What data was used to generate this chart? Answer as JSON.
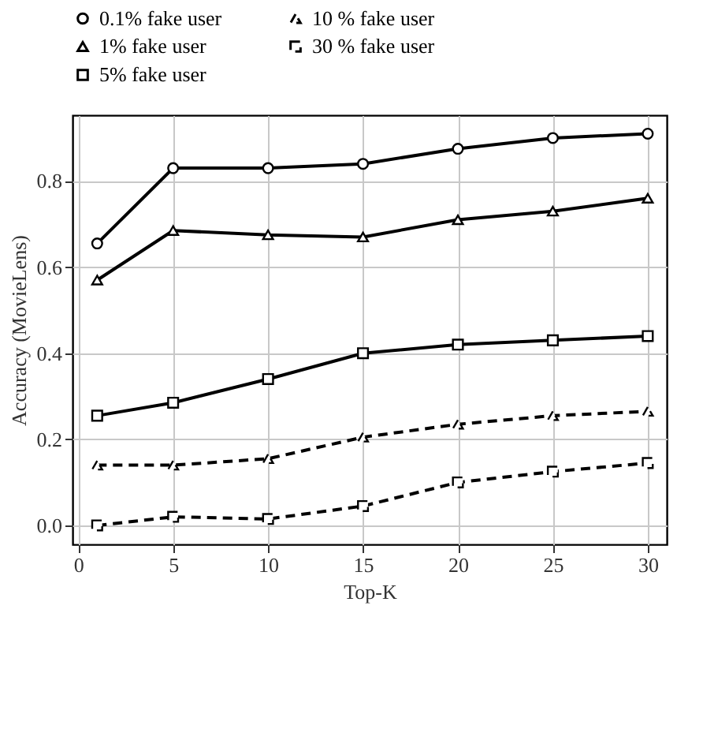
{
  "chart_data": {
    "type": "line",
    "xlabel": "Top-K",
    "ylabel": "Accuracy (MovieLens)",
    "x": [
      1,
      5,
      10,
      15,
      20,
      25,
      30
    ],
    "series": [
      {
        "name": "0.1% fake user",
        "color": "#000000",
        "marker": "circle",
        "line_style": "solid",
        "values": [
          0.655,
          0.83,
          0.83,
          0.84,
          0.875,
          0.9,
          0.91
        ]
      },
      {
        "name": "1% fake user",
        "color": "#000000",
        "marker": "triangle",
        "line_style": "solid",
        "values": [
          0.57,
          0.685,
          0.675,
          0.67,
          0.71,
          0.73,
          0.76
        ]
      },
      {
        "name": "5% fake user",
        "color": "#000000",
        "marker": "square",
        "line_style": "solid",
        "values": [
          0.255,
          0.285,
          0.34,
          0.4,
          0.42,
          0.43,
          0.44
        ]
      },
      {
        "name": "10 % fake user",
        "color": "#000000",
        "marker": "triangle",
        "line_style": "dashed",
        "values": [
          0.14,
          0.14,
          0.155,
          0.205,
          0.235,
          0.255,
          0.265
        ]
      },
      {
        "name": "30 % fake user",
        "color": "#000000",
        "marker": "square",
        "line_style": "dashed",
        "values": [
          0.0,
          0.02,
          0.015,
          0.045,
          0.1,
          0.125,
          0.145
        ]
      }
    ],
    "xlim": [
      -0.3,
      31
    ],
    "xticks": [
      0,
      5,
      10,
      15,
      20,
      25,
      30
    ],
    "ylim": [
      -0.044,
      0.953
    ],
    "yticks": [
      {
        "value": 0,
        "label": "0.0"
      },
      {
        "value": 0.2,
        "label": "0.2"
      },
      {
        "value": 0.4,
        "label": "0.4"
      },
      {
        "value": 0.6,
        "label": "0.6"
      },
      {
        "value": 0.8,
        "label": "0.8"
      }
    ],
    "grid": true,
    "legend": "top"
  }
}
